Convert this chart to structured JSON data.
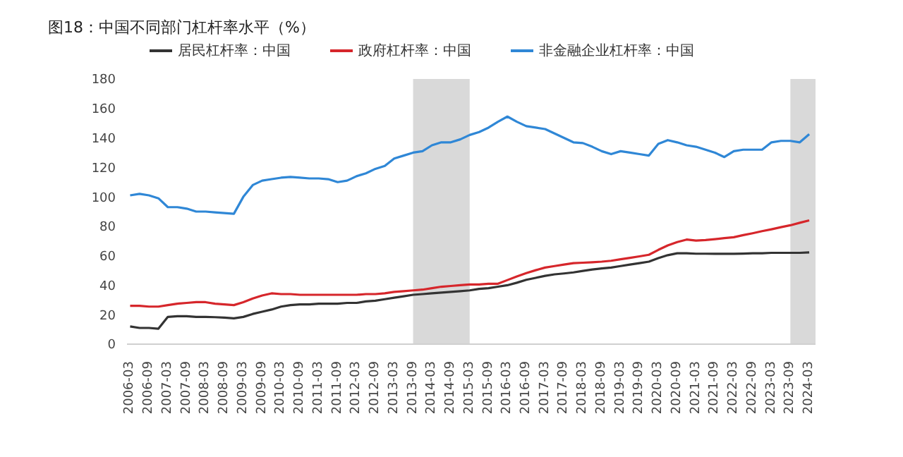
{
  "chart_data": {
    "type": "line",
    "title": "图18：中国不同部门杠杆率水平（%）",
    "x": [
      "2006-03",
      "2006-06",
      "2006-09",
      "2006-12",
      "2007-03",
      "2007-06",
      "2007-09",
      "2007-12",
      "2008-03",
      "2008-06",
      "2008-09",
      "2008-12",
      "2009-03",
      "2009-06",
      "2009-09",
      "2009-12",
      "2010-03",
      "2010-06",
      "2010-09",
      "2010-12",
      "2011-03",
      "2011-06",
      "2011-09",
      "2011-12",
      "2012-03",
      "2012-06",
      "2012-09",
      "2012-12",
      "2013-03",
      "2013-06",
      "2013-09",
      "2013-12",
      "2014-03",
      "2014-06",
      "2014-09",
      "2014-12",
      "2015-03",
      "2015-06",
      "2015-09",
      "2015-12",
      "2016-03",
      "2016-06",
      "2016-09",
      "2016-12",
      "2017-03",
      "2017-06",
      "2017-09",
      "2017-12",
      "2018-03",
      "2018-06",
      "2018-09",
      "2018-12",
      "2019-03",
      "2019-06",
      "2019-09",
      "2019-12",
      "2020-03",
      "2020-06",
      "2020-09",
      "2020-12",
      "2021-03",
      "2021-06",
      "2021-09",
      "2021-12",
      "2022-03",
      "2022-06",
      "2022-09",
      "2022-12",
      "2023-03",
      "2023-06",
      "2023-09",
      "2023-12",
      "2024-03"
    ],
    "series": [
      {
        "name": "居民杠杆率：中国",
        "color": "#333333",
        "values": [
          12,
          11,
          11,
          10.5,
          18.5,
          19,
          19,
          18.5,
          18.5,
          18.3,
          18,
          17.5,
          18.5,
          20.5,
          22,
          23.5,
          25.5,
          26.5,
          27,
          27,
          27.5,
          27.5,
          27.5,
          28,
          28,
          29,
          29.5,
          30.5,
          31.5,
          32.5,
          33.5,
          34,
          34.5,
          35,
          35.5,
          36,
          36.5,
          37.5,
          38,
          39,
          40,
          41.7,
          43.7,
          45,
          46.4,
          47.4,
          48,
          48.7,
          49.7,
          50.7,
          51.4,
          52,
          53,
          54,
          55,
          56,
          58.4,
          60.4,
          61.7,
          61.7,
          61.4,
          61.4,
          61.3,
          61.3,
          61.3,
          61.5,
          61.7,
          61.7,
          62,
          62,
          62,
          62,
          62.3
        ]
      },
      {
        "name": "政府杠杆率：中国",
        "color": "#d6262b",
        "values": [
          26,
          26,
          25.5,
          25.5,
          26.5,
          27.5,
          28,
          28.5,
          28.5,
          27.5,
          27,
          26.5,
          28.5,
          31,
          33,
          34.5,
          34,
          34,
          33.5,
          33.5,
          33.5,
          33.5,
          33.5,
          33.5,
          33.5,
          34,
          34,
          34.5,
          35.5,
          36,
          36.5,
          37,
          38,
          39,
          39.5,
          40,
          40.5,
          40.5,
          41,
          41,
          43.5,
          46,
          48.2,
          50.2,
          52,
          53,
          54,
          55,
          55.3,
          55.6,
          56,
          56.6,
          57.6,
          58.6,
          59.6,
          60.7,
          64,
          67,
          69.3,
          71,
          70.3,
          70.7,
          71.3,
          72,
          72.6,
          74,
          75.3,
          76.7,
          78,
          79.4,
          80.7,
          82.4,
          84
        ]
      },
      {
        "name": "非金融企业杠杆率：中国",
        "color": "#2f87d6",
        "values": [
          101,
          102,
          101,
          99,
          93,
          93,
          92,
          90,
          90,
          89.5,
          89,
          88.5,
          100,
          108,
          111,
          112,
          113,
          113.5,
          113,
          112.5,
          112.5,
          112,
          110,
          111,
          114,
          116,
          119,
          121,
          126,
          128,
          130,
          131,
          135,
          137,
          137,
          139,
          142,
          144,
          147,
          151,
          154.5,
          151,
          148,
          147,
          146,
          143,
          140,
          137,
          136.5,
          134,
          131,
          129,
          131,
          130,
          129,
          128,
          136,
          138.5,
          137,
          135,
          134,
          132,
          130,
          127,
          131,
          132,
          132,
          132,
          137,
          138,
          138,
          137,
          142.5
        ]
      }
    ],
    "xlim": [
      "2006-02",
      "2024-05"
    ],
    "xticks": [
      "2006-03",
      "2006-09",
      "2007-03",
      "2007-09",
      "2008-03",
      "2008-09",
      "2009-03",
      "2009-09",
      "2010-03",
      "2010-09",
      "2011-03",
      "2011-09",
      "2012-03",
      "2012-09",
      "2013-03",
      "2013-09",
      "2014-03",
      "2014-09",
      "2015-03",
      "2015-09",
      "2016-03",
      "2016-09",
      "2017-03",
      "2017-09",
      "2018-03",
      "2018-09",
      "2019-03",
      "2019-09",
      "2020-03",
      "2020-09",
      "2021-03",
      "2021-09",
      "2022-03",
      "2022-09",
      "2023-03",
      "2023-09",
      "2024-03"
    ],
    "ylim": [
      0,
      180
    ],
    "yticks": [
      0,
      20,
      40,
      60,
      80,
      100,
      120,
      140,
      160,
      180
    ],
    "bands": [
      {
        "axis": "x",
        "from": "2013-09",
        "to": "2015-03",
        "color": "#d9d9d9"
      },
      {
        "axis": "x",
        "from": "2023-09",
        "to": "2024-05",
        "color": "#d9d9d9"
      }
    ],
    "grid": false,
    "legend": "top",
    "marker": "none",
    "line_style": "solid"
  }
}
